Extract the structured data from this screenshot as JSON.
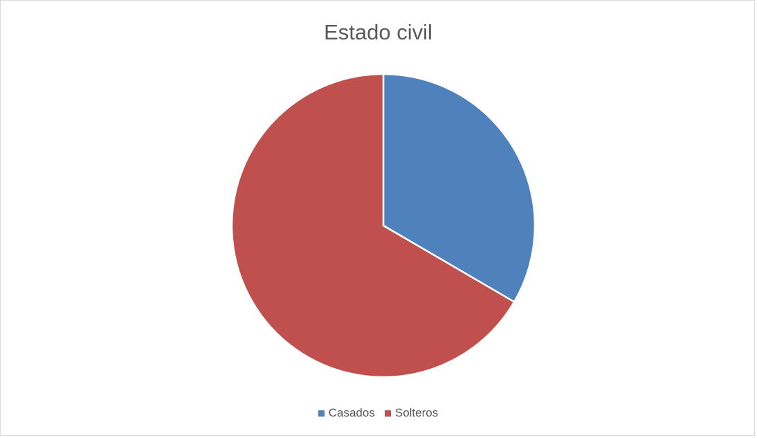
{
  "chart_data": {
    "type": "pie",
    "title": "Estado civil",
    "slices": [
      {
        "label": "Casados",
        "value": 33.4,
        "color": "#4f81bd"
      },
      {
        "label": "Solteros",
        "value": 66.6,
        "color": "#c0504d"
      }
    ],
    "start_angle_deg": 0,
    "direction": "clockwise",
    "legend_position": "bottom"
  }
}
